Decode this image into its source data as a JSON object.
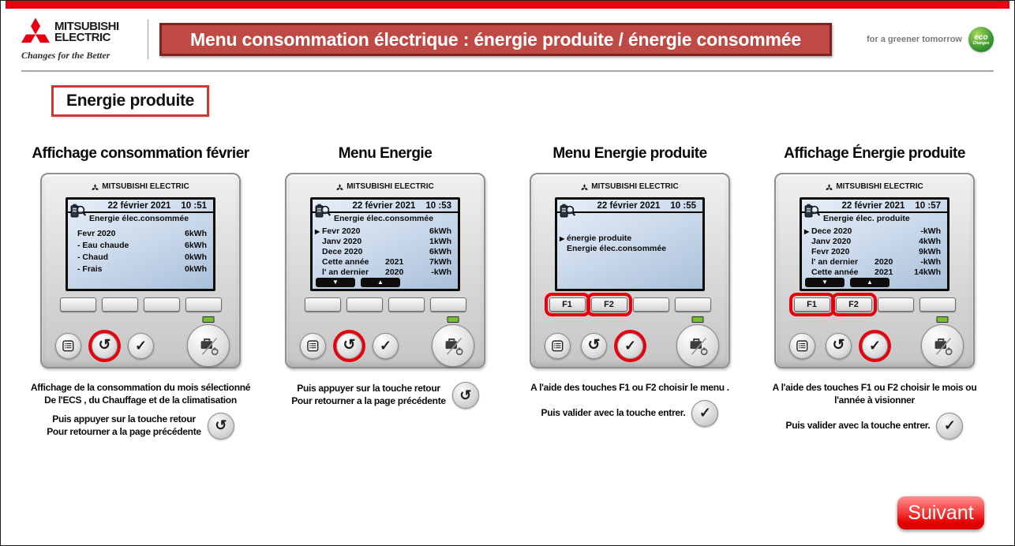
{
  "header": {
    "brand": {
      "line1": "MITSUBISHI",
      "line2": "ELECTRIC",
      "tagline": "Changes for the Better"
    },
    "banner_title": "Menu consommation électrique : énergie produite / énergie consommée",
    "eco_tagline": "for a greener tomorrow",
    "eco_badge_line1": "eco",
    "eco_badge_line2": "Changes"
  },
  "section_label": "Energie produite",
  "device_brand": "MITSUBISHI ELECTRIC",
  "footer": {
    "next_label": "Suivant"
  },
  "colors": {
    "mitsubishi_red": "#e60012",
    "banner_bg": "#bf4a45",
    "banner_border": "#7d2420",
    "highlight_red": "#e8000d",
    "led_green": "#76bf2e"
  },
  "panels": [
    {
      "title": "Affichage consommation février",
      "screen": {
        "date": "22 février 2021",
        "time": "10 :51",
        "subtitle": "Energie élec.consommée",
        "rows": [
          {
            "cursor": false,
            "label": "Fevr 2020",
            "year": "",
            "value": "6kWh"
          },
          {
            "cursor": false,
            "label": "- Eau chaude",
            "year": "",
            "value": "6kWh"
          },
          {
            "cursor": false,
            "label": "- Chaud",
            "year": "",
            "value": "0kWh"
          },
          {
            "cursor": false,
            "label": "- Frais",
            "year": "",
            "value": "0kWh"
          }
        ],
        "scroll_buttons": false
      },
      "fkeys": [
        {
          "label": "",
          "highlight": false
        },
        {
          "label": "",
          "highlight": false
        },
        {
          "label": "",
          "highlight": false
        },
        {
          "label": "",
          "highlight": false
        }
      ],
      "circled_key": "return",
      "notes": [
        {
          "lines": [
            "Affichage de la consommation du mois sélectionné",
            "De l'ECS , du Chauffage et de la climatisation"
          ],
          "icon": ""
        },
        {
          "lines": [
            "Puis appuyer sur la touche retour",
            "Pour retourner a la page précédente"
          ],
          "icon": "return"
        }
      ]
    },
    {
      "title": "Menu Energie",
      "screen": {
        "date": "22 février 2021",
        "time": "10 :53",
        "subtitle": "Energie élec.consommée",
        "rows": [
          {
            "cursor": true,
            "label": "Fevr 2020",
            "year": "",
            "value": "6kWh"
          },
          {
            "cursor": false,
            "label": "Janv 2020",
            "year": "",
            "value": "1kWh"
          },
          {
            "cursor": false,
            "label": "Dece 2020",
            "year": "",
            "value": "6kWh"
          },
          {
            "cursor": false,
            "label": "Cette année",
            "year": "2021",
            "value": "7kWh"
          },
          {
            "cursor": false,
            "label": "l' an dernier",
            "year": "2020",
            "value": "-kWh"
          }
        ],
        "scroll_buttons": true
      },
      "fkeys": [
        {
          "label": "",
          "highlight": false
        },
        {
          "label": "",
          "highlight": false
        },
        {
          "label": "",
          "highlight": false
        },
        {
          "label": "",
          "highlight": false
        }
      ],
      "circled_key": "return",
      "notes": [
        {
          "lines": [
            "Puis appuyer sur la touche retour",
            "Pour retourner a la page précédente"
          ],
          "icon": "return"
        }
      ]
    },
    {
      "title": "Menu Energie produite",
      "screen": {
        "date": "22 février 2021",
        "time": "10 :55",
        "subtitle": "",
        "rows": [
          {
            "cursor": true,
            "label": "énergie produite",
            "year": "",
            "value": ""
          },
          {
            "cursor": false,
            "label": "Energie élec.consommée",
            "year": "",
            "value": ""
          }
        ],
        "scroll_buttons": false
      },
      "fkeys": [
        {
          "label": "F1",
          "highlight": true
        },
        {
          "label": "F2",
          "highlight": true
        },
        {
          "label": "",
          "highlight": false
        },
        {
          "label": "",
          "highlight": false
        }
      ],
      "circled_key": "ok",
      "notes": [
        {
          "lines": [
            "A l'aide des touches F1 ou F2 choisir le menu ."
          ],
          "icon": ""
        },
        {
          "lines": [
            "Puis valider avec la touche entrer."
          ],
          "icon": "ok"
        }
      ]
    },
    {
      "title": "Affichage Énergie produite",
      "screen": {
        "date": "22 février 2021",
        "time": "10 :57",
        "subtitle": "Energie élec. produite",
        "rows": [
          {
            "cursor": true,
            "label": "Dece 2020",
            "year": "",
            "value": "-kWh"
          },
          {
            "cursor": false,
            "label": "Janv 2020",
            "year": "",
            "value": "4kWh"
          },
          {
            "cursor": false,
            "label": "Fevr 2020",
            "year": "",
            "value": "9kWh"
          },
          {
            "cursor": false,
            "label": "l' an dernier",
            "year": "2020",
            "value": "-kWh"
          },
          {
            "cursor": false,
            "label": "Cette année",
            "year": "2021",
            "value": "14kWh"
          }
        ],
        "scroll_buttons": true
      },
      "fkeys": [
        {
          "label": "F1",
          "highlight": true
        },
        {
          "label": "F2",
          "highlight": true
        },
        {
          "label": "",
          "highlight": false
        },
        {
          "label": "",
          "highlight": false
        }
      ],
      "circled_key": "ok",
      "notes": [
        {
          "lines": [
            "A l'aide des touches F1 ou F2 choisir le mois ou",
            "l'année à visionner"
          ],
          "icon": ""
        },
        {
          "lines": [
            "Puis valider avec la touche entrer."
          ],
          "icon": "ok"
        }
      ]
    }
  ]
}
